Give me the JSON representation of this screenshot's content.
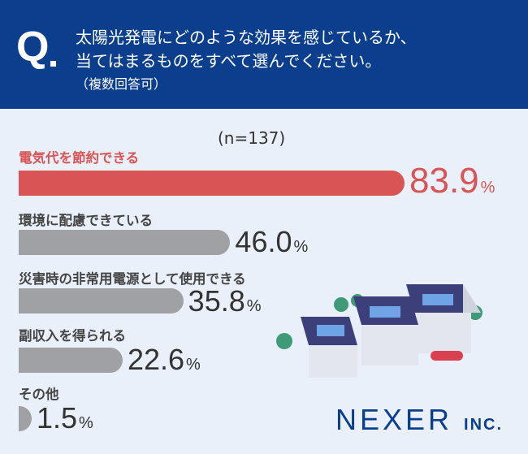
{
  "header": {
    "q": "Q",
    "line1": "太陽光発電にどのような効果を感じているか、",
    "line2": "当てはまるものをすべて選んでください。",
    "sub": "（複数回答可）"
  },
  "chart_data": {
    "type": "bar",
    "orientation": "horizontal",
    "note": "(n=137)",
    "categories": [
      "電気代を節約できる",
      "環境に配慮できている",
      "災害時の非常用電源として使用できる",
      "副収入を得られる",
      "その他"
    ],
    "values": [
      83.9,
      46.0,
      35.8,
      22.6,
      1.5
    ],
    "value_labels": [
      "83.9",
      "46.0",
      "35.8",
      "22.6",
      "1.5"
    ],
    "unit": "%",
    "colors": {
      "highlight": "#d95454",
      "default": "#a0a1a5"
    }
  },
  "logo": {
    "main": "NEXER",
    "suffix": "INC."
  }
}
